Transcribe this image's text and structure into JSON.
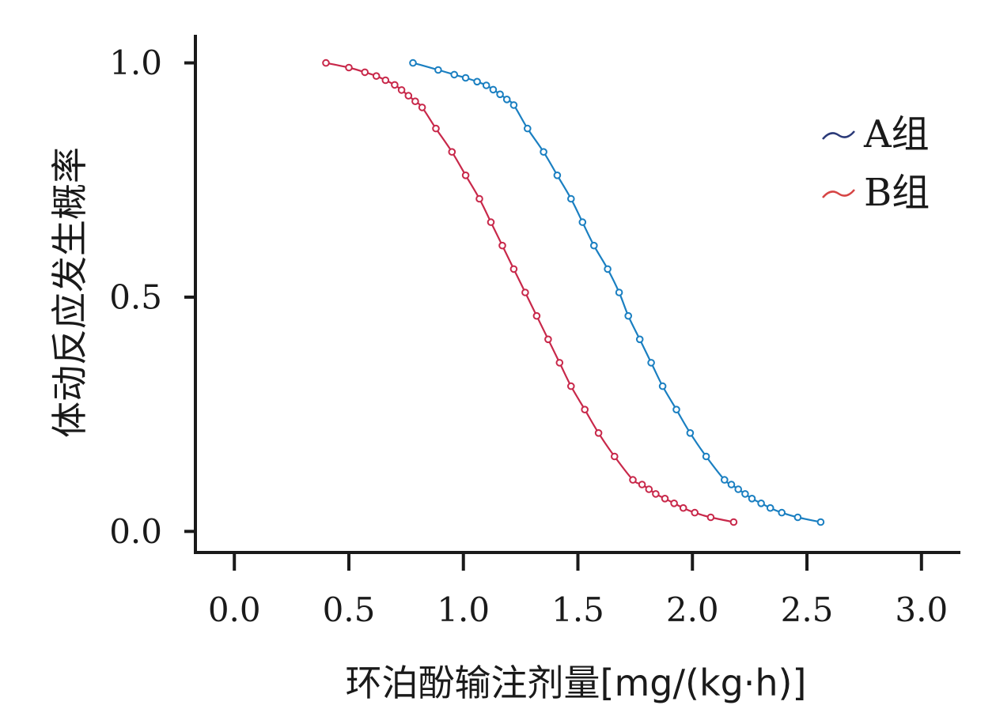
{
  "chart_data": {
    "type": "line",
    "title": "",
    "xlabel": "环泊酚输注剂量[mg/(kg·h)]",
    "ylabel": "体动反应发生概率",
    "xlim": [
      -0.17,
      3.17
    ],
    "ylim": [
      -0.045,
      1.06
    ],
    "x_ticks": [
      "0.0",
      "0.5",
      "1.0",
      "1.5",
      "2.0",
      "2.5",
      "3.0"
    ],
    "x_tick_values": [
      0.0,
      0.5,
      1.0,
      1.5,
      2.0,
      2.5,
      3.0
    ],
    "y_ticks": [
      "0.0",
      "0.5",
      "1.0"
    ],
    "y_tick_values": [
      0.0,
      0.5,
      1.0
    ],
    "grid": false,
    "legend_position": "top-right",
    "series": [
      {
        "name": "A组",
        "color": "#1a7fc1",
        "legend_color": "#2b3a78",
        "x": [
          0.78,
          0.89,
          0.96,
          1.01,
          1.06,
          1.1,
          1.13,
          1.16,
          1.19,
          1.22,
          1.28,
          1.35,
          1.41,
          1.47,
          1.52,
          1.57,
          1.63,
          1.68,
          1.72,
          1.77,
          1.82,
          1.87,
          1.93,
          1.99,
          2.06,
          2.14,
          2.17,
          2.2,
          2.23,
          2.26,
          2.3,
          2.34,
          2.39,
          2.46,
          2.56
        ],
        "values": [
          1.0,
          0.985,
          0.975,
          0.968,
          0.96,
          0.952,
          0.943,
          0.933,
          0.922,
          0.91,
          0.86,
          0.81,
          0.76,
          0.71,
          0.66,
          0.61,
          0.56,
          0.51,
          0.46,
          0.41,
          0.36,
          0.31,
          0.26,
          0.21,
          0.16,
          0.11,
          0.1,
          0.09,
          0.08,
          0.07,
          0.06,
          0.05,
          0.04,
          0.03,
          0.02
        ]
      },
      {
        "name": "B组",
        "color": "#c8284a",
        "legend_color": "#d64545",
        "x": [
          0.4,
          0.5,
          0.57,
          0.62,
          0.66,
          0.7,
          0.73,
          0.76,
          0.79,
          0.82,
          0.88,
          0.95,
          1.01,
          1.07,
          1.12,
          1.17,
          1.22,
          1.27,
          1.32,
          1.37,
          1.42,
          1.47,
          1.53,
          1.59,
          1.66,
          1.74,
          1.78,
          1.81,
          1.84,
          1.88,
          1.92,
          1.96,
          2.01,
          2.08,
          2.18
        ],
        "values": [
          1.0,
          0.99,
          0.98,
          0.972,
          0.963,
          0.953,
          0.942,
          0.93,
          0.918,
          0.905,
          0.86,
          0.81,
          0.76,
          0.71,
          0.66,
          0.61,
          0.56,
          0.51,
          0.46,
          0.41,
          0.36,
          0.31,
          0.26,
          0.21,
          0.16,
          0.11,
          0.1,
          0.09,
          0.08,
          0.07,
          0.06,
          0.05,
          0.04,
          0.03,
          0.02
        ]
      }
    ]
  }
}
